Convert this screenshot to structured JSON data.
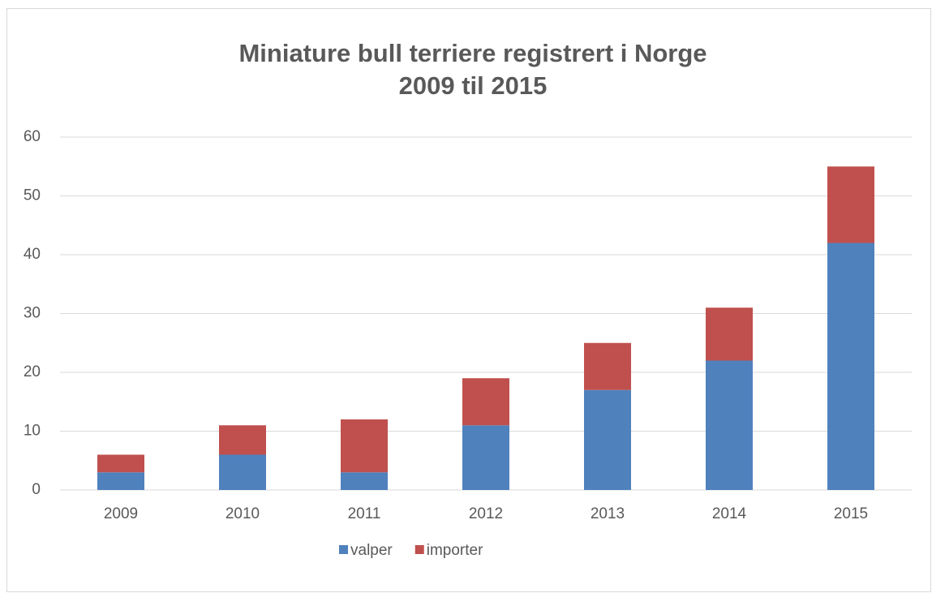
{
  "chart_data": {
    "type": "stacked_bar",
    "title": [
      "Miniature bull terriere registrert i Norge",
      "2009 til 2015"
    ],
    "categories": [
      "2009",
      "2010",
      "2011",
      "2012",
      "2013",
      "2014",
      "2015"
    ],
    "series": [
      {
        "name": "valper",
        "color": "#4f81bd",
        "values": [
          3,
          6,
          3,
          11,
          17,
          22,
          42
        ]
      },
      {
        "name": "importer",
        "color": "#c0504d",
        "values": [
          3,
          5,
          9,
          8,
          8,
          9,
          13
        ]
      }
    ],
    "ylim": [
      0,
      60
    ],
    "yticks": [
      0,
      10,
      20,
      30,
      40,
      50,
      60
    ],
    "grid": true,
    "legend": "bottom"
  }
}
